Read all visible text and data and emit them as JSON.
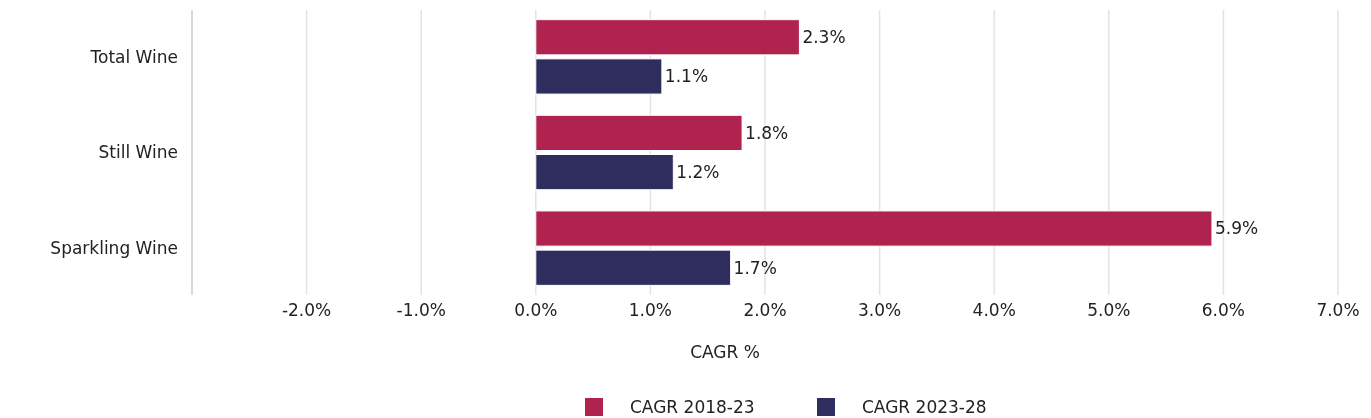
{
  "chart_data": {
    "type": "bar",
    "orientation": "horizontal",
    "categories": [
      "Total Wine",
      "Still Wine",
      "Sparkling Wine"
    ],
    "series": [
      {
        "name": "CAGR 2018-23",
        "color": "#b0234f",
        "values": [
          2.3,
          1.8,
          5.9
        ],
        "value_labels": [
          "2.3%",
          "1.8%",
          "5.9%"
        ]
      },
      {
        "name": "CAGR 2023-28",
        "color": "#2e2d5e",
        "values": [
          1.1,
          1.2,
          1.7
        ],
        "value_labels": [
          "1.1%",
          "1.2%",
          "1.7%"
        ]
      }
    ],
    "xlim": [
      -3,
      7
    ],
    "xticks": [
      {
        "value": -2,
        "label": "-2.0%"
      },
      {
        "value": -1,
        "label": "-1.0%"
      },
      {
        "value": 0,
        "label": "0.0%"
      },
      {
        "value": 1,
        "label": "1.0%"
      },
      {
        "value": 2,
        "label": "2.0%"
      },
      {
        "value": 3,
        "label": "3.0%"
      },
      {
        "value": 4,
        "label": "4.0%"
      },
      {
        "value": 5,
        "label": "5.0%"
      },
      {
        "value": 6,
        "label": "6.0%"
      },
      {
        "value": 7,
        "label": "7.0%"
      }
    ],
    "xlabel": "CAGR %",
    "grid": "x",
    "legend": "bottom"
  }
}
